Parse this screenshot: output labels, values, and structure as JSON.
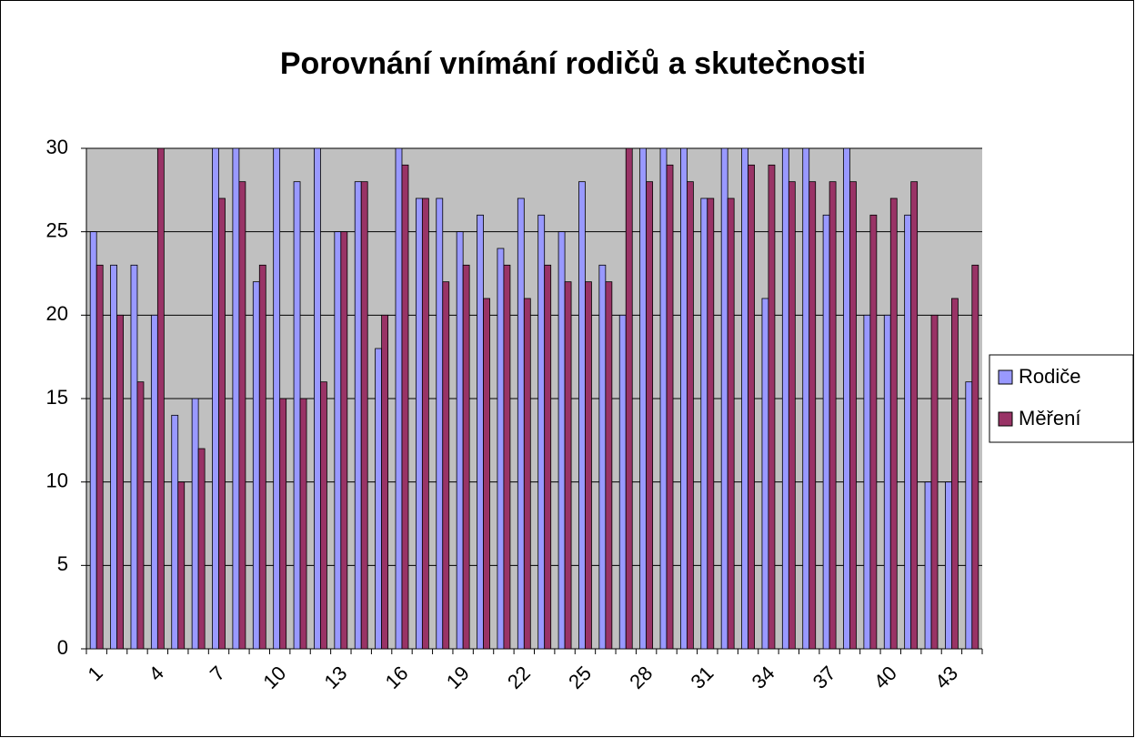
{
  "chart_data": {
    "type": "bar",
    "title": "Porovnání vnímání rodičů a skutečnosti",
    "categories": [
      "1",
      null,
      null,
      "4",
      null,
      null,
      "7",
      null,
      null,
      "10",
      null,
      null,
      "13",
      null,
      null,
      "16",
      null,
      null,
      "19",
      null,
      null,
      "22",
      null,
      null,
      "25",
      null,
      null,
      "28",
      null,
      null,
      "31",
      null,
      null,
      "34",
      null,
      null,
      "37",
      null,
      null,
      "40",
      null,
      null,
      "43",
      null
    ],
    "series": [
      {
        "name": "Rodiče",
        "color": "#9999ff",
        "values": [
          25,
          23,
          23,
          20,
          14,
          15,
          30,
          30,
          22,
          30,
          28,
          30,
          25,
          28,
          18,
          30,
          27,
          27,
          25,
          26,
          24,
          27,
          26,
          25,
          28,
          23,
          20,
          30,
          30,
          30,
          27,
          30,
          30,
          21,
          30,
          30,
          26,
          30,
          20,
          20,
          26,
          10,
          10,
          16
        ]
      },
      {
        "name": "Měření",
        "color": "#993366",
        "values": [
          23,
          20,
          16,
          30,
          10,
          12,
          27,
          28,
          23,
          15,
          15,
          16,
          25,
          28,
          20,
          29,
          27,
          22,
          23,
          21,
          23,
          21,
          23,
          22,
          22,
          22,
          30,
          28,
          29,
          28,
          27,
          27,
          29,
          29,
          28,
          28,
          28,
          28,
          26,
          27,
          28,
          20,
          21,
          23
        ]
      }
    ],
    "ylim": [
      0,
      30
    ],
    "yticks": [
      0,
      5,
      10,
      15,
      20,
      25,
      30
    ],
    "grid": true,
    "legend": "right",
    "plot_background": "#c0c0c0"
  }
}
